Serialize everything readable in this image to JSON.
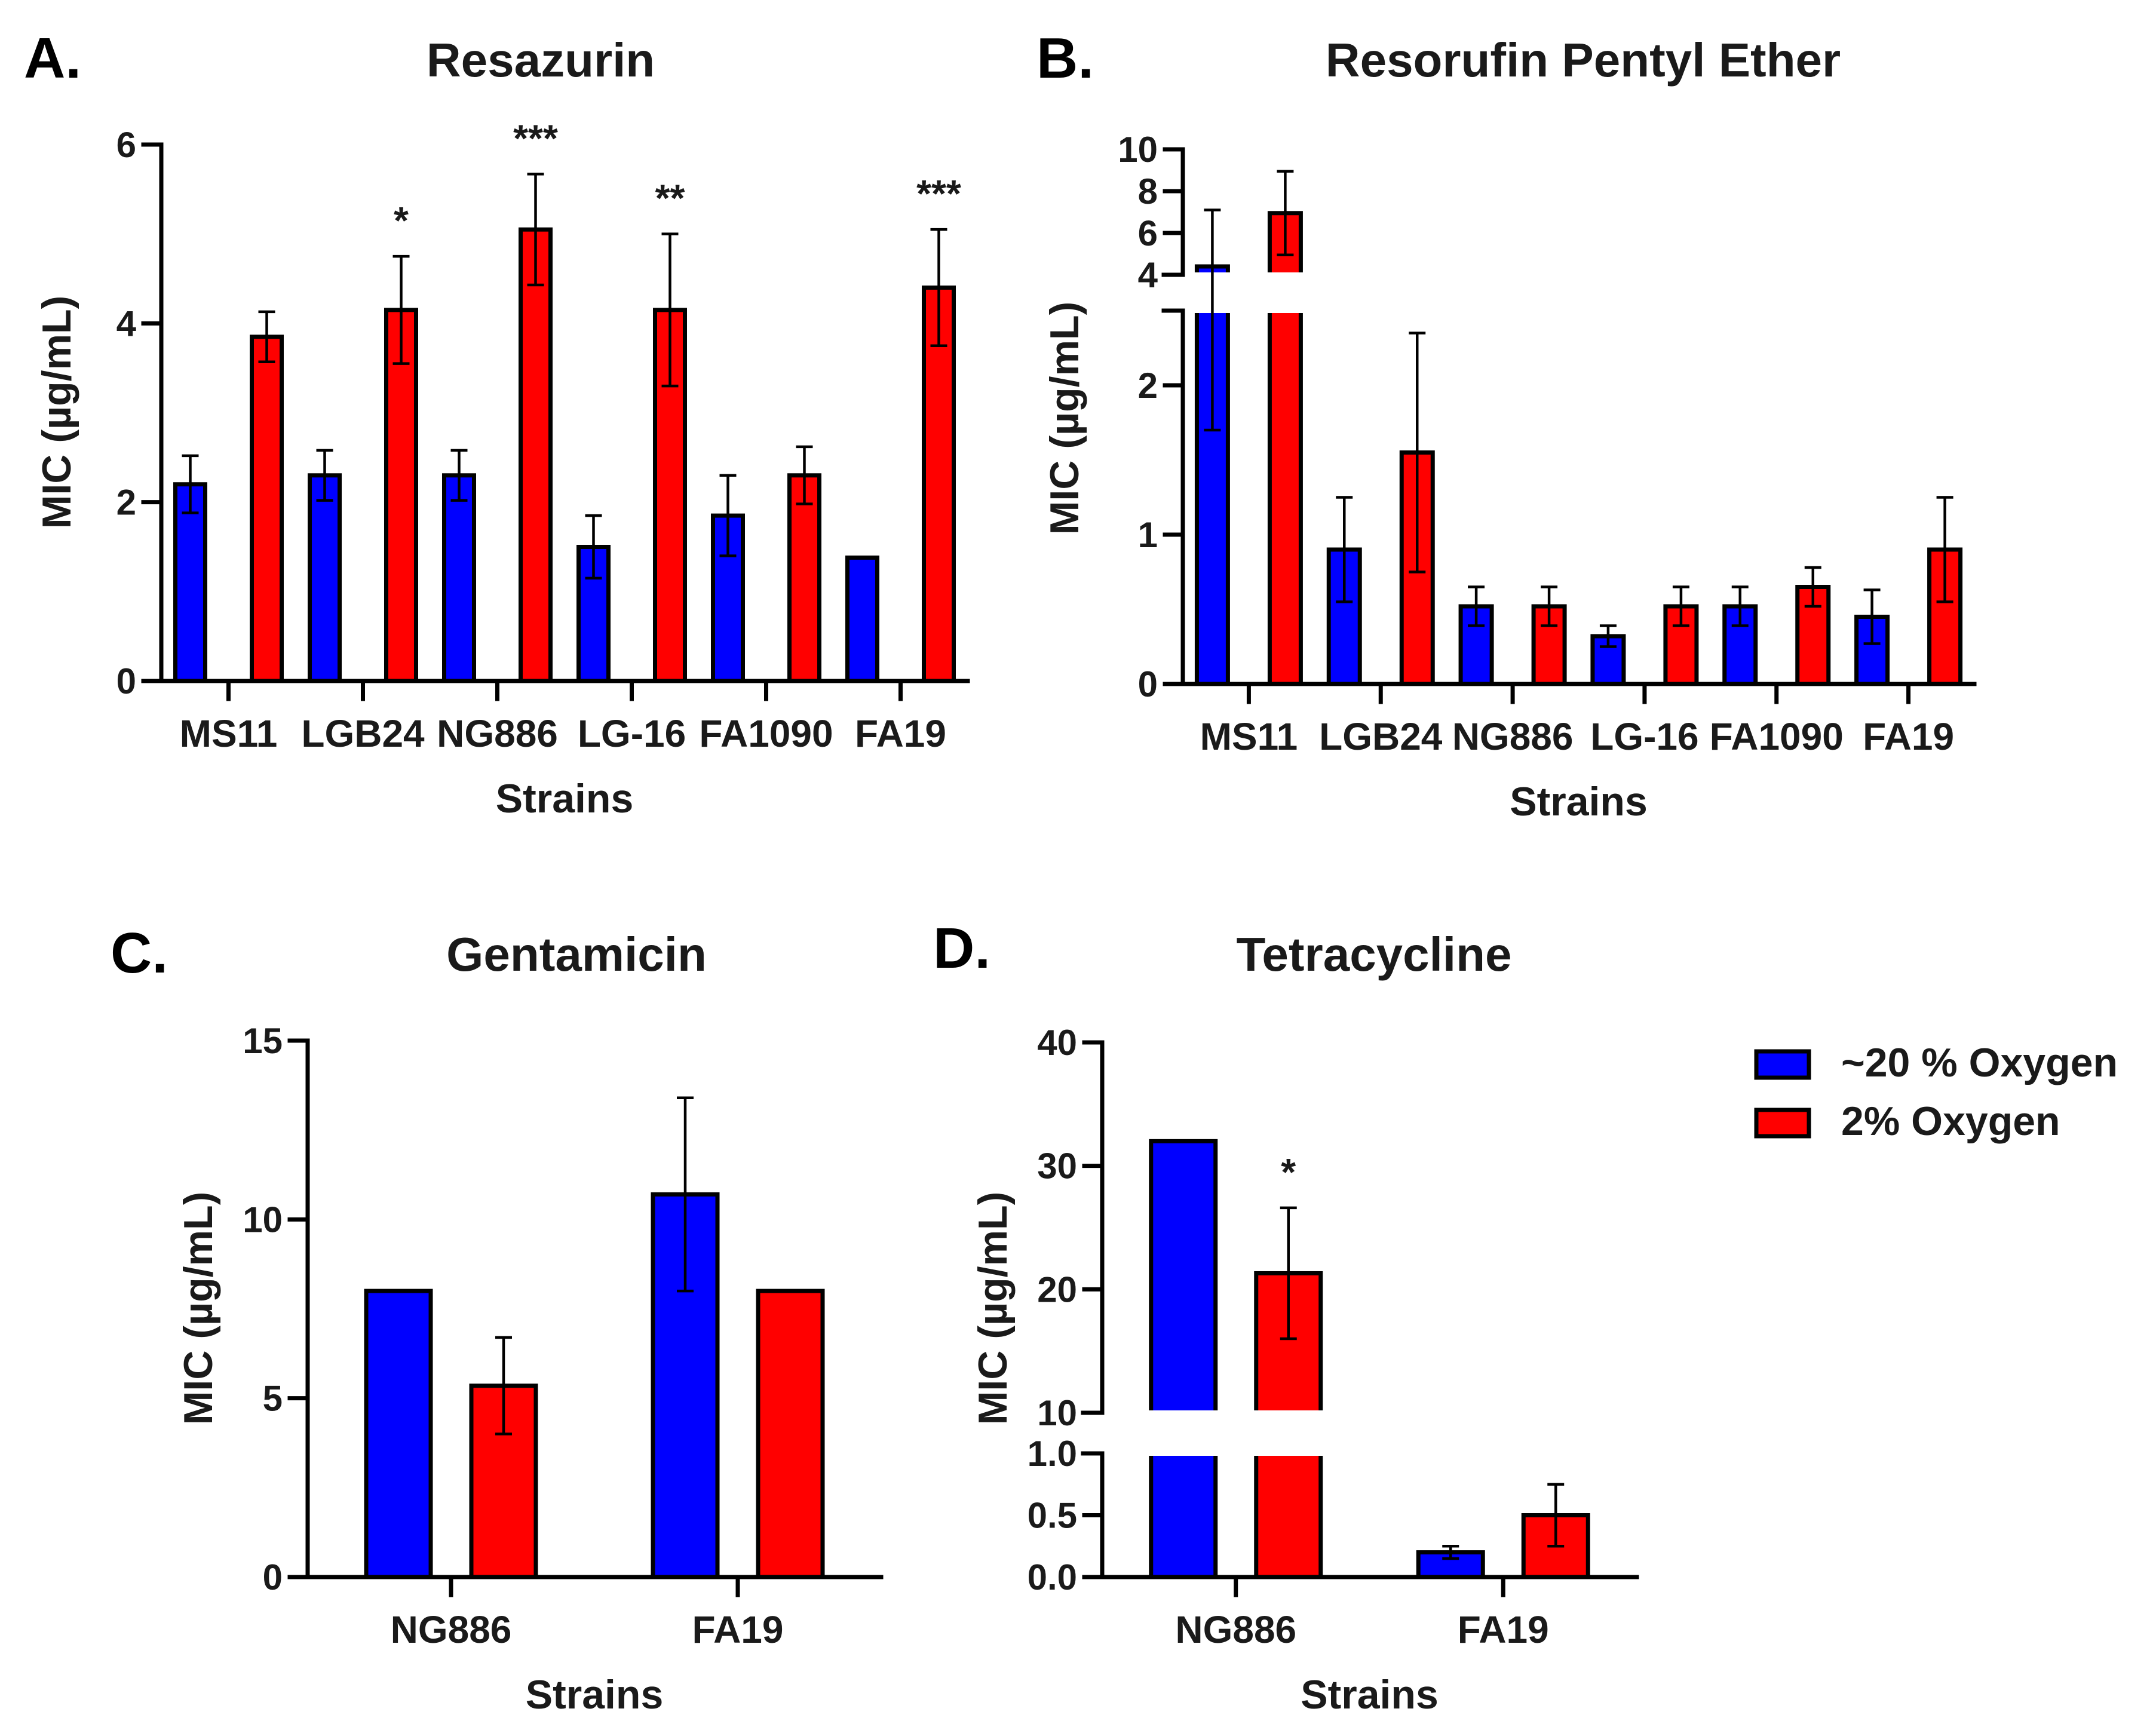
{
  "colors": {
    "oxygen20": "#0000ff",
    "oxygen2": "#ff0000"
  },
  "legend": [
    {
      "label": "~20 % Oxygen",
      "color": "#0000ff"
    },
    {
      "label": "2% Oxygen",
      "color": "#ff0000"
    }
  ],
  "chart_data": [
    {
      "letter": "A.",
      "type": "bar",
      "title": "Resazurin",
      "xlabel": "Strains",
      "ylabel": "MIC (µg/mL)",
      "ylim": [
        0,
        6
      ],
      "yticks": [
        0,
        2,
        4,
        6
      ],
      "categories": [
        "MS11",
        "LGB24",
        "NG886",
        "LG-16",
        "FA1090",
        "FA19"
      ],
      "series": [
        {
          "values": [
            2.2,
            2.3,
            2.3,
            1.5,
            1.85,
            1.38
          ],
          "errors": [
            0.32,
            0.28,
            0.28,
            0.35,
            0.45,
            0
          ]
        },
        {
          "values": [
            3.85,
            4.15,
            5.05,
            4.15,
            2.3,
            4.4
          ],
          "errors": [
            0.28,
            0.6,
            0.62,
            0.85,
            0.32,
            0.65
          ]
        }
      ],
      "annotations": [
        "",
        "*",
        "***",
        "**",
        "",
        "***"
      ]
    },
    {
      "letter": "B.",
      "type": "bar",
      "title": "Resorufin Pentyl Ether",
      "xlabel": "Strains",
      "ylabel": "MIC (µg/mL)",
      "ylim": [
        0,
        10
      ],
      "axis_break": [
        2.5,
        4
      ],
      "yticks_lower": [
        0,
        1,
        2
      ],
      "yticks_upper": [
        4,
        6,
        8,
        10
      ],
      "categories": [
        "MS11",
        "LGB24",
        "NG886",
        "LG-16",
        "FA1090",
        "FA19"
      ],
      "series": [
        {
          "values": [
            4.4,
            0.9,
            0.52,
            0.32,
            0.52,
            0.45
          ],
          "errors": [
            2.7,
            0.35,
            0.13,
            0.07,
            0.13,
            0.18
          ]
        },
        {
          "values": [
            6.95,
            1.55,
            0.52,
            0.52,
            0.65,
            0.9
          ],
          "errors": [
            2.0,
            0.8,
            0.13,
            0.13,
            0.13,
            0.35
          ]
        }
      ],
      "annotations": [
        "",
        "",
        "",
        "",
        "",
        ""
      ]
    },
    {
      "letter": "C.",
      "type": "bar",
      "title": "Gentamicin",
      "xlabel": "Strains",
      "ylabel": "MIC (µg/mL)",
      "ylim": [
        0,
        15
      ],
      "yticks": [
        0,
        5,
        10,
        15
      ],
      "categories": [
        "NG886",
        "FA19"
      ],
      "series": [
        {
          "values": [
            8,
            10.7
          ],
          "errors": [
            0,
            2.7
          ]
        },
        {
          "values": [
            5.35,
            8
          ],
          "errors": [
            1.35,
            0
          ]
        }
      ],
      "annotations": [
        "",
        ""
      ]
    },
    {
      "letter": "D.",
      "type": "bar",
      "title": "Tetracycline",
      "xlabel": "Strains",
      "ylabel": "MIC (µg/mL)",
      "ylim": [
        0,
        40
      ],
      "axis_break": [
        1.0,
        10
      ],
      "yticks_lower": [
        "0.0",
        "0.5",
        "1.0"
      ],
      "yticks_upper": [
        10,
        20,
        30,
        40
      ],
      "categories": [
        "NG886",
        "FA19"
      ],
      "series": [
        {
          "values": [
            32,
            0.2
          ],
          "errors": [
            0,
            0.05
          ]
        },
        {
          "values": [
            21.3,
            0.5
          ],
          "errors": [
            5.3,
            0.25
          ]
        }
      ],
      "annotations": [
        "*",
        ""
      ]
    }
  ]
}
